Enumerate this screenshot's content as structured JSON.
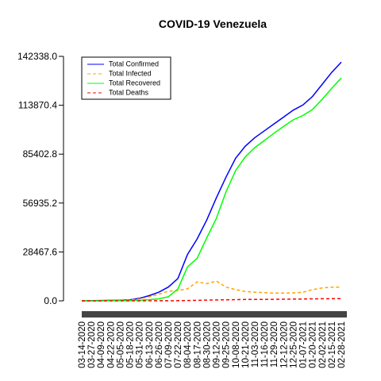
{
  "chart_data": {
    "type": "line",
    "title": "COVID-19 Venezuela",
    "categories": [
      "03-14-2020",
      "03-27-2020",
      "04-09-2020",
      "04-22-2020",
      "05-05-2020",
      "05-18-2020",
      "05-31-2020",
      "06-13-2020",
      "06-26-2020",
      "07-09-2020",
      "07-22-2020",
      "08-04-2020",
      "08-17-2020",
      "08-30-2020",
      "09-12-2020",
      "09-25-2020",
      "10-08-2020",
      "10-21-2020",
      "11-03-2020",
      "11-16-2020",
      "11-29-2020",
      "12-12-2020",
      "12-25-2020",
      "01-07-2021",
      "01-20-2021",
      "02-02-2021",
      "02-15-2021",
      "02-28-2021"
    ],
    "series": [
      {
        "name": "Total Confirmed",
        "color": "#0000ff",
        "dashed": false,
        "values": [
          0,
          100,
          170,
          290,
          360,
          620,
          1500,
          3000,
          5000,
          8000,
          13000,
          27000,
          36000,
          47000,
          60000,
          72000,
          83000,
          90000,
          95000,
          99000,
          103000,
          107000,
          111000,
          114000,
          119000,
          126000,
          133000,
          139000
        ]
      },
      {
        "name": "Total Infected",
        "color": "#ffa500",
        "dashed": true,
        "values": [
          0,
          90,
          150,
          190,
          200,
          400,
          1100,
          2300,
          3800,
          5600,
          6000,
          7000,
          11000,
          10000,
          11500,
          8000,
          6500,
          5500,
          5000,
          4800,
          4500,
          4500,
          4600,
          5000,
          6500,
          7500,
          8000,
          8000
        ]
      },
      {
        "name": "Total Recovered",
        "color": "#00ff00",
        "dashed": false,
        "values": [
          0,
          10,
          10,
          90,
          150,
          210,
          390,
          680,
          1160,
          2340,
          6900,
          19800,
          24700,
          36600,
          48000,
          63400,
          75800,
          83730,
          89190,
          93350,
          97600,
          101540,
          105380,
          107920,
          111360,
          117300,
          123740,
          129700
        ]
      },
      {
        "name": "Total Deaths",
        "color": "#ff0000",
        "dashed": true,
        "values": [
          0,
          1,
          9,
          10,
          10,
          10,
          14,
          24,
          40,
          60,
          100,
          200,
          300,
          400,
          500,
          600,
          700,
          770,
          810,
          850,
          900,
          960,
          1020,
          1080,
          1140,
          1200,
          1260,
          1300
        ]
      }
    ],
    "ylim": [
      0,
      142338
    ],
    "yticks": [
      {
        "value": 0,
        "label": "0.0"
      },
      28467.6,
      56935.2,
      85402.8,
      113870.4,
      {
        "value": 142338,
        "label": "142338.0"
      }
    ],
    "legend": "top-left"
  }
}
